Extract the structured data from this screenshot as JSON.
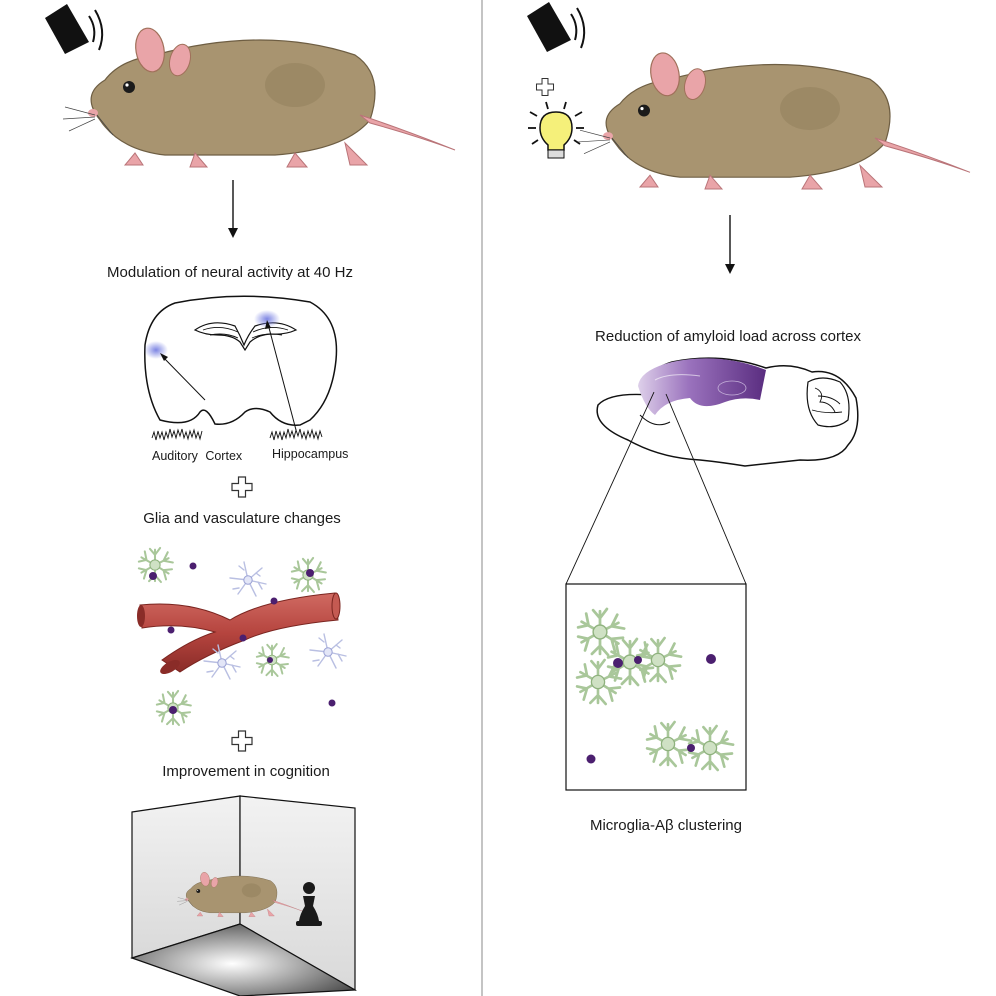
{
  "left_panel": {
    "step1": "Modulation of neural activity at 40 Hz",
    "region_auditory": "Auditory Cortex",
    "region_hippocampus": "Hippocampus",
    "step2": "Glia and vasculature changes",
    "step3": "Improvement in cognition"
  },
  "right_panel": {
    "step1": "Reduction of amyloid load across cortex",
    "step2": "Microglia-Aβ clustering"
  },
  "colors": {
    "mouse_body": "#a89470",
    "mouse_pink": "#e9a4a8",
    "microglia": "#a9c79a",
    "astrocyte": "#c3c8e6",
    "amyloid": "#4b1f6f",
    "vessel": "#b6453f",
    "brain_purple": "#6b3b8f",
    "activity_blue": "#7d86e0"
  },
  "icons": [
    "speaker-icon",
    "light-bulb-icon",
    "plus-icon",
    "arrow-down-icon",
    "pawn-icon"
  ]
}
